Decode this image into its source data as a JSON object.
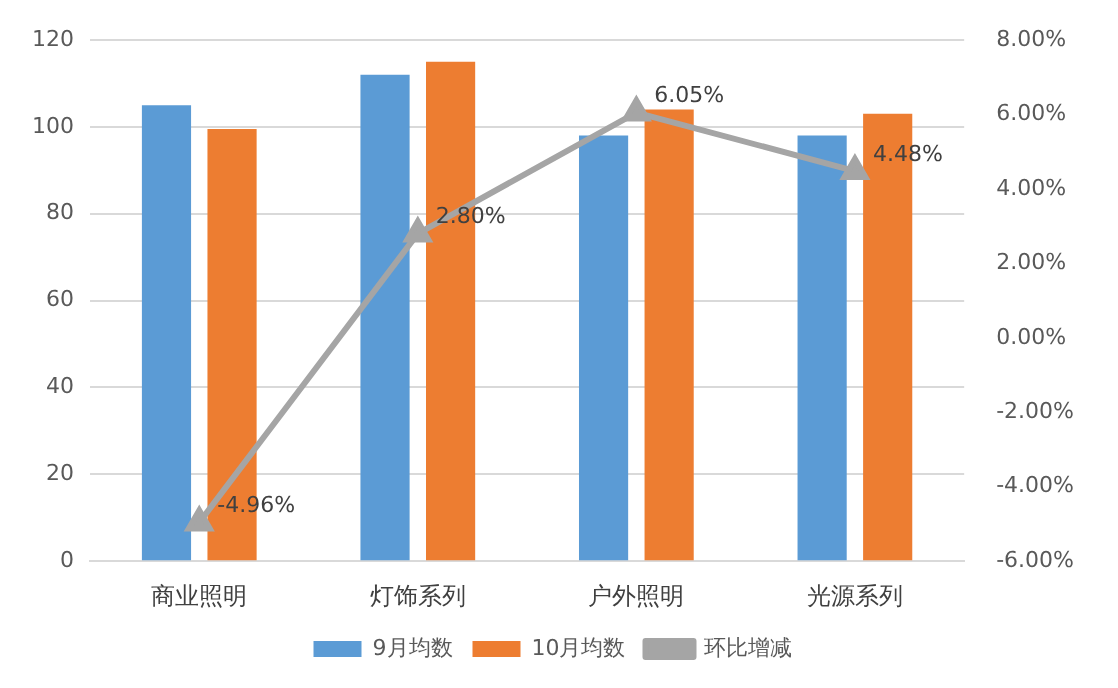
{
  "chart_data": {
    "type": "bar",
    "categories": [
      "商业照明",
      "灯饰系列",
      "户外照明",
      "光源系列"
    ],
    "series": [
      {
        "name": "9月均数",
        "color": "#5b9bd5",
        "values": [
          105,
          112,
          98,
          98
        ]
      },
      {
        "name": "10月均数",
        "color": "#ed7d31",
        "values": [
          99.5,
          115,
          104,
          103
        ]
      },
      {
        "name": "环比增减",
        "type": "line",
        "axis": "y2",
        "color": "#a5a5a5",
        "marker": "triangle",
        "values": [
          -4.96,
          2.8,
          6.05,
          4.48
        ],
        "value_labels": [
          "-4.96%",
          "2.80%",
          "6.05%",
          "4.48%"
        ]
      }
    ],
    "ylim": [
      0,
      120
    ],
    "yticks": [
      0,
      20,
      40,
      60,
      80,
      100,
      120
    ],
    "y2lim": [
      -6,
      8
    ],
    "y2ticks": [
      {
        "value": -6,
        "label": "-6.00%"
      },
      {
        "value": -4,
        "label": "-4.00%"
      },
      {
        "value": -2,
        "label": "-2.00%"
      },
      {
        "value": 0,
        "label": "0.00%"
      },
      {
        "value": 2,
        "label": "2.00%"
      },
      {
        "value": 4,
        "label": "4.00%"
      },
      {
        "value": 6,
        "label": "6.00%"
      },
      {
        "value": 8,
        "label": "8.00%"
      }
    ],
    "grid": "y",
    "legend": "bottom"
  }
}
